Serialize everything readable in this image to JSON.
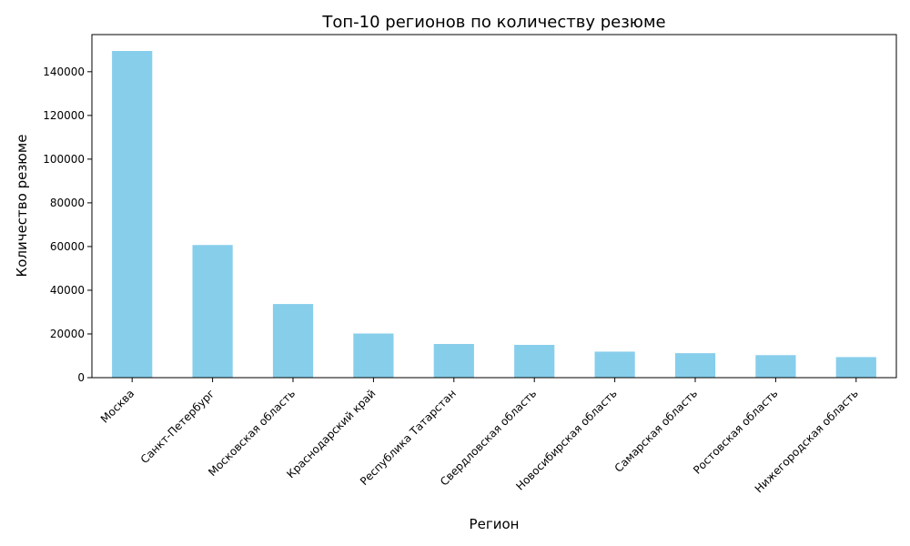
{
  "chart_data": {
    "type": "bar",
    "title": "Топ-10 регионов по количеству резюме",
    "xlabel": "Регион",
    "ylabel": "Количество резюме",
    "categories": [
      "Москва",
      "Санкт-Петербург",
      "Московская область",
      "Краснодарский край",
      "Республика Татарстан",
      "Свердловская область",
      "Новосибирская область",
      "Самарская область",
      "Ростовская область",
      "Нижегородская область"
    ],
    "values": [
      149500,
      60700,
      33700,
      20200,
      15400,
      15000,
      11900,
      11200,
      10300,
      9400
    ],
    "y_ticks": [
      0,
      20000,
      40000,
      60000,
      80000,
      100000,
      120000,
      140000
    ],
    "y_tick_labels": [
      "0",
      "20000",
      "40000",
      "60000",
      "80000",
      "100000",
      "120000",
      "140000"
    ],
    "ylim": [
      0,
      157000
    ],
    "bar_color": "#87CEEB",
    "grid": false,
    "legend": false
  }
}
